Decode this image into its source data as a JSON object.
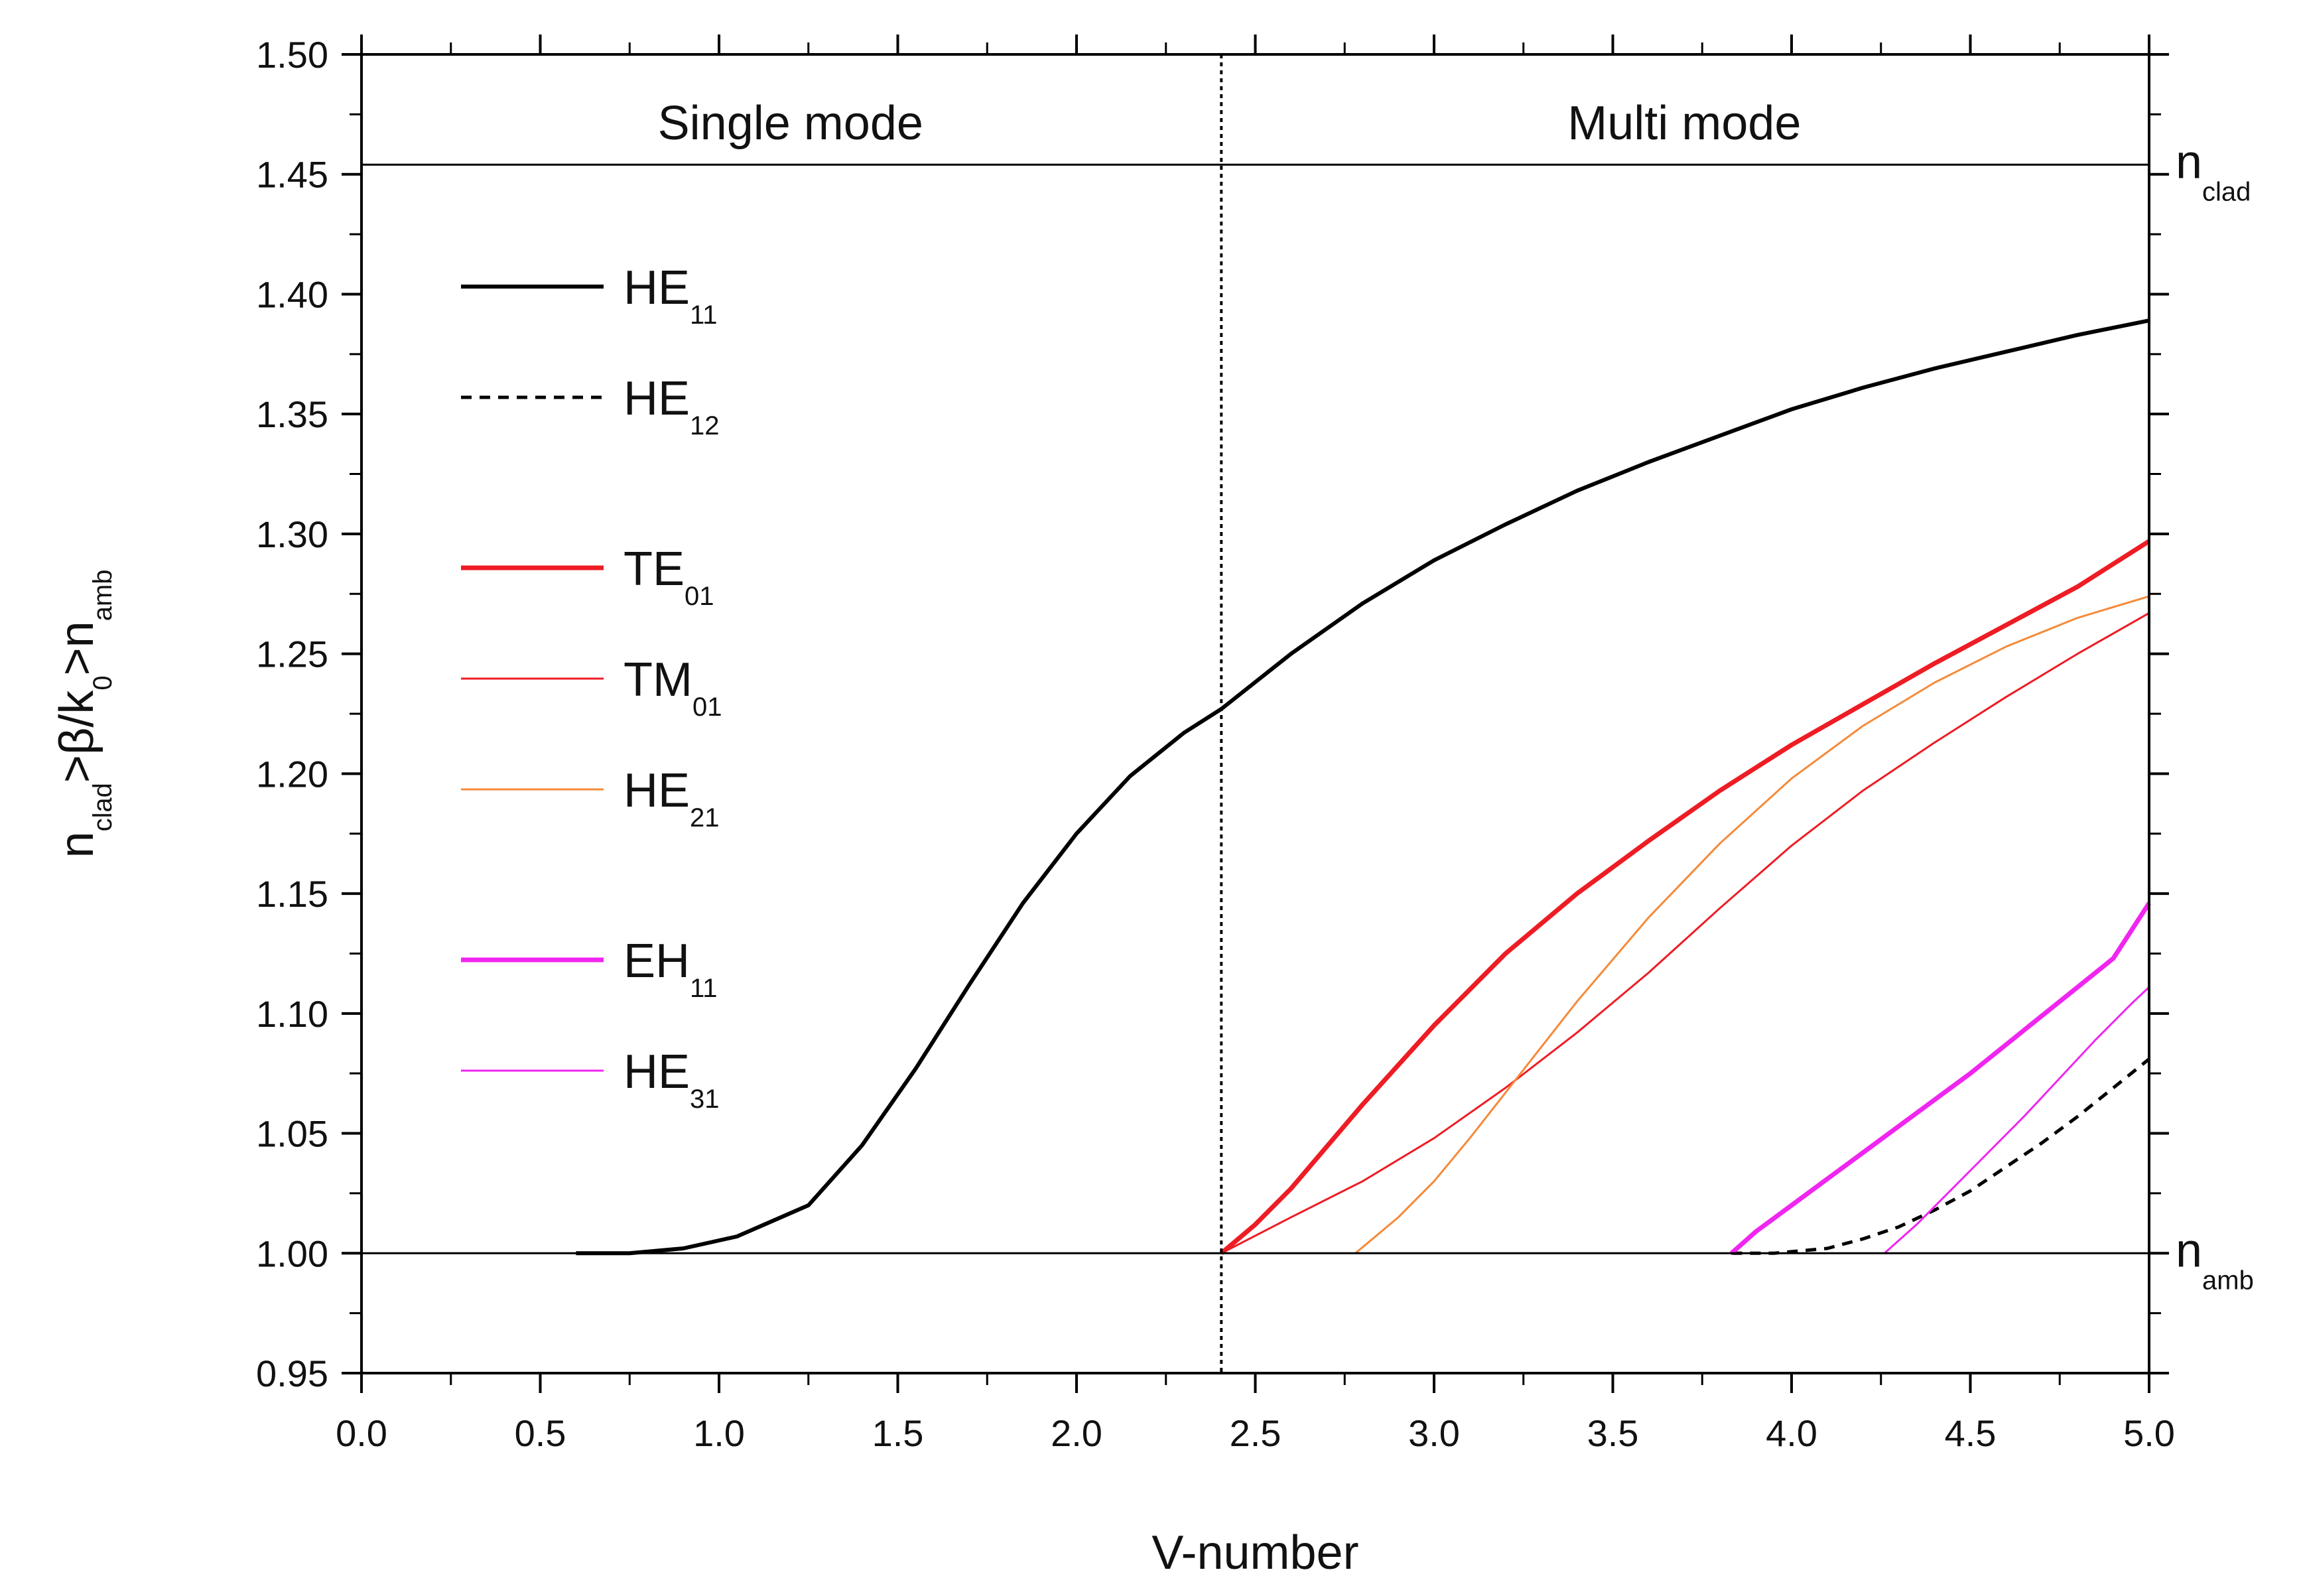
{
  "chart_data": {
    "type": "line",
    "xlabel": "V-number",
    "ylabel": {
      "main_parts": [
        "n",
        ">β/k",
        ">n"
      ],
      "subs": [
        "clad",
        "0",
        "amb"
      ]
    },
    "xlim": [
      0.0,
      5.0
    ],
    "ylim": [
      0.95,
      1.5
    ],
    "x_ticks": [
      "0.0",
      "0.5",
      "1.0",
      "1.5",
      "2.0",
      "2.5",
      "3.0",
      "3.5",
      "4.0",
      "4.5",
      "5.0"
    ],
    "y_ticks": [
      "0.95",
      "1.00",
      "1.05",
      "1.10",
      "1.15",
      "1.20",
      "1.25",
      "1.30",
      "1.35",
      "1.40",
      "1.45",
      "1.50"
    ],
    "regions": [
      {
        "label": "Single mode",
        "x_center": 1.2
      },
      {
        "label": "Multi mode",
        "x_center": 3.7
      }
    ],
    "cutoff_line": {
      "x": 2.405,
      "style": "dotted"
    },
    "reference_lines": [
      {
        "name": "n_clad",
        "y": 1.454,
        "label_main": "n",
        "label_sub": "clad"
      },
      {
        "name": "n_amb",
        "y": 1.0,
        "label_main": "n",
        "label_sub": "amb"
      }
    ],
    "series": [
      {
        "name": "HE11",
        "label_main": "HE",
        "label_sub": "11",
        "color": "#000000",
        "width": 6,
        "dash": "",
        "x": [
          0.6,
          0.75,
          0.9,
          1.05,
          1.25,
          1.4,
          1.55,
          1.7,
          1.85,
          2.0,
          2.15,
          2.3,
          2.405,
          2.6,
          2.8,
          3.0,
          3.2,
          3.4,
          3.6,
          3.8,
          4.0,
          4.2,
          4.4,
          4.6,
          4.8,
          5.0
        ],
        "y": [
          1.0,
          1.0,
          1.002,
          1.007,
          1.02,
          1.045,
          1.077,
          1.112,
          1.146,
          1.175,
          1.199,
          1.217,
          1.227,
          1.25,
          1.271,
          1.289,
          1.304,
          1.318,
          1.33,
          1.341,
          1.352,
          1.361,
          1.369,
          1.376,
          1.383,
          1.389
        ]
      },
      {
        "name": "HE12",
        "label_main": "HE",
        "label_sub": "12",
        "color": "#000000",
        "width": 5,
        "dash": "16,12",
        "x": [
          3.832,
          3.95,
          4.1,
          4.2,
          4.3,
          4.4,
          4.5,
          4.6,
          4.7,
          4.8,
          4.9,
          5.0
        ],
        "y": [
          1.0,
          1.0,
          1.002,
          1.006,
          1.011,
          1.018,
          1.026,
          1.036,
          1.046,
          1.057,
          1.069,
          1.081
        ]
      },
      {
        "name": "TE01",
        "label_main": "TE",
        "label_sub": "01",
        "color": "#ee1c24",
        "width": 7,
        "dash": "",
        "x": [
          2.405,
          2.5,
          2.6,
          2.8,
          3.0,
          3.2,
          3.4,
          3.6,
          3.8,
          4.0,
          4.2,
          4.4,
          4.6,
          4.8,
          5.0
        ],
        "y": [
          1.0,
          1.012,
          1.027,
          1.062,
          1.095,
          1.125,
          1.15,
          1.172,
          1.193,
          1.212,
          1.229,
          1.246,
          1.262,
          1.278,
          1.297
        ]
      },
      {
        "name": "TM01",
        "label_main": "TM",
        "label_sub": "01",
        "color": "#ee1c24",
        "width": 3,
        "dash": "",
        "x": [
          2.405,
          2.6,
          2.8,
          3.0,
          3.2,
          3.4,
          3.6,
          3.8,
          4.0,
          4.2,
          4.4,
          4.6,
          4.8,
          5.0
        ],
        "y": [
          1.0,
          1.015,
          1.03,
          1.048,
          1.069,
          1.092,
          1.117,
          1.144,
          1.17,
          1.193,
          1.213,
          1.232,
          1.25,
          1.267
        ]
      },
      {
        "name": "HE21",
        "label_main": "HE",
        "label_sub": "21",
        "color": "#f58a3a",
        "width": 3,
        "dash": "",
        "x": [
          2.78,
          2.9,
          3.0,
          3.1,
          3.2,
          3.4,
          3.6,
          3.8,
          4.0,
          4.2,
          4.4,
          4.6,
          4.8,
          5.0
        ],
        "y": [
          1.0,
          1.015,
          1.03,
          1.048,
          1.067,
          1.105,
          1.14,
          1.171,
          1.198,
          1.22,
          1.238,
          1.253,
          1.265,
          1.274
        ]
      },
      {
        "name": "EH11",
        "label_main": "EH",
        "label_sub": "11",
        "color": "#f026f0",
        "width": 7,
        "dash": "",
        "x": [
          3.832,
          3.9,
          4.0,
          4.1,
          4.2,
          4.3,
          4.4,
          4.5,
          4.6,
          4.7,
          4.8,
          4.9,
          5.0
        ],
        "y": [
          1.0,
          1.009,
          1.02,
          1.031,
          1.042,
          1.053,
          1.064,
          1.075,
          1.087,
          1.099,
          1.111,
          1.123,
          1.146
        ]
      },
      {
        "name": "HE31",
        "label_main": "HE",
        "label_sub": "31",
        "color": "#f026f0",
        "width": 3,
        "dash": "",
        "x": [
          4.26,
          4.35,
          4.45,
          4.55,
          4.65,
          4.75,
          4.85,
          4.95,
          5.0
        ],
        "y": [
          1.0,
          1.012,
          1.027,
          1.042,
          1.057,
          1.073,
          1.089,
          1.104,
          1.111
        ]
      }
    ],
    "legend_groups": [
      [
        "HE11",
        "HE12"
      ],
      [
        "TE01",
        "TM01",
        "HE21"
      ],
      [
        "EH11",
        "HE31"
      ]
    ],
    "legend_position": "top-left",
    "grid": false
  }
}
